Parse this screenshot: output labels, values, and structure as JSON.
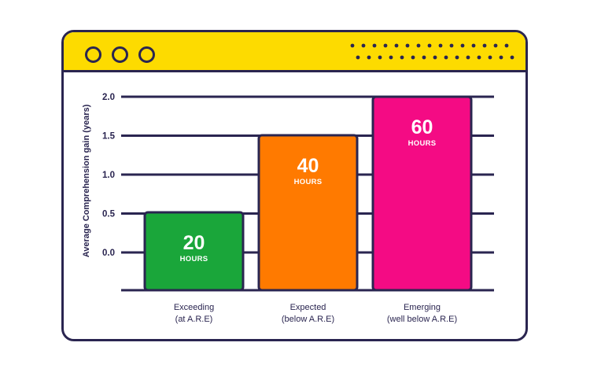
{
  "theme": {
    "frame_color": "#2a2550",
    "titlebar_color": "#fddb00",
    "dot_color": "#2a2550"
  },
  "window": {
    "buttons": [
      "circle-icon",
      "circle-icon",
      "circle-icon"
    ]
  },
  "chart_data": {
    "type": "bar",
    "ylabel": "Average Comprehension gain (years)",
    "y_ticks": [
      "2.0",
      "1.5",
      "1.0",
      "0.5",
      "0.0"
    ],
    "y_tick_values": [
      2.0,
      1.5,
      1.0,
      0.5,
      0.0
    ],
    "grid": true,
    "categories": [
      {
        "line1": "Exceeding",
        "line2": "(at A.R.E)"
      },
      {
        "line1": "Expected",
        "line2": "(below A.R.E)"
      },
      {
        "line1": "Emerging",
        "line2": "(well below A.R.E)"
      }
    ],
    "bar_levels": [
      0.5,
      1.5,
      2.0
    ],
    "data_labels": [
      {
        "value": "20",
        "unit": "HOURS"
      },
      {
        "value": "40",
        "unit": "HOURS"
      },
      {
        "value": "60",
        "unit": "HOURS"
      }
    ],
    "colors": [
      "#1aa63a",
      "#ff7a00",
      "#f40b84"
    ]
  }
}
